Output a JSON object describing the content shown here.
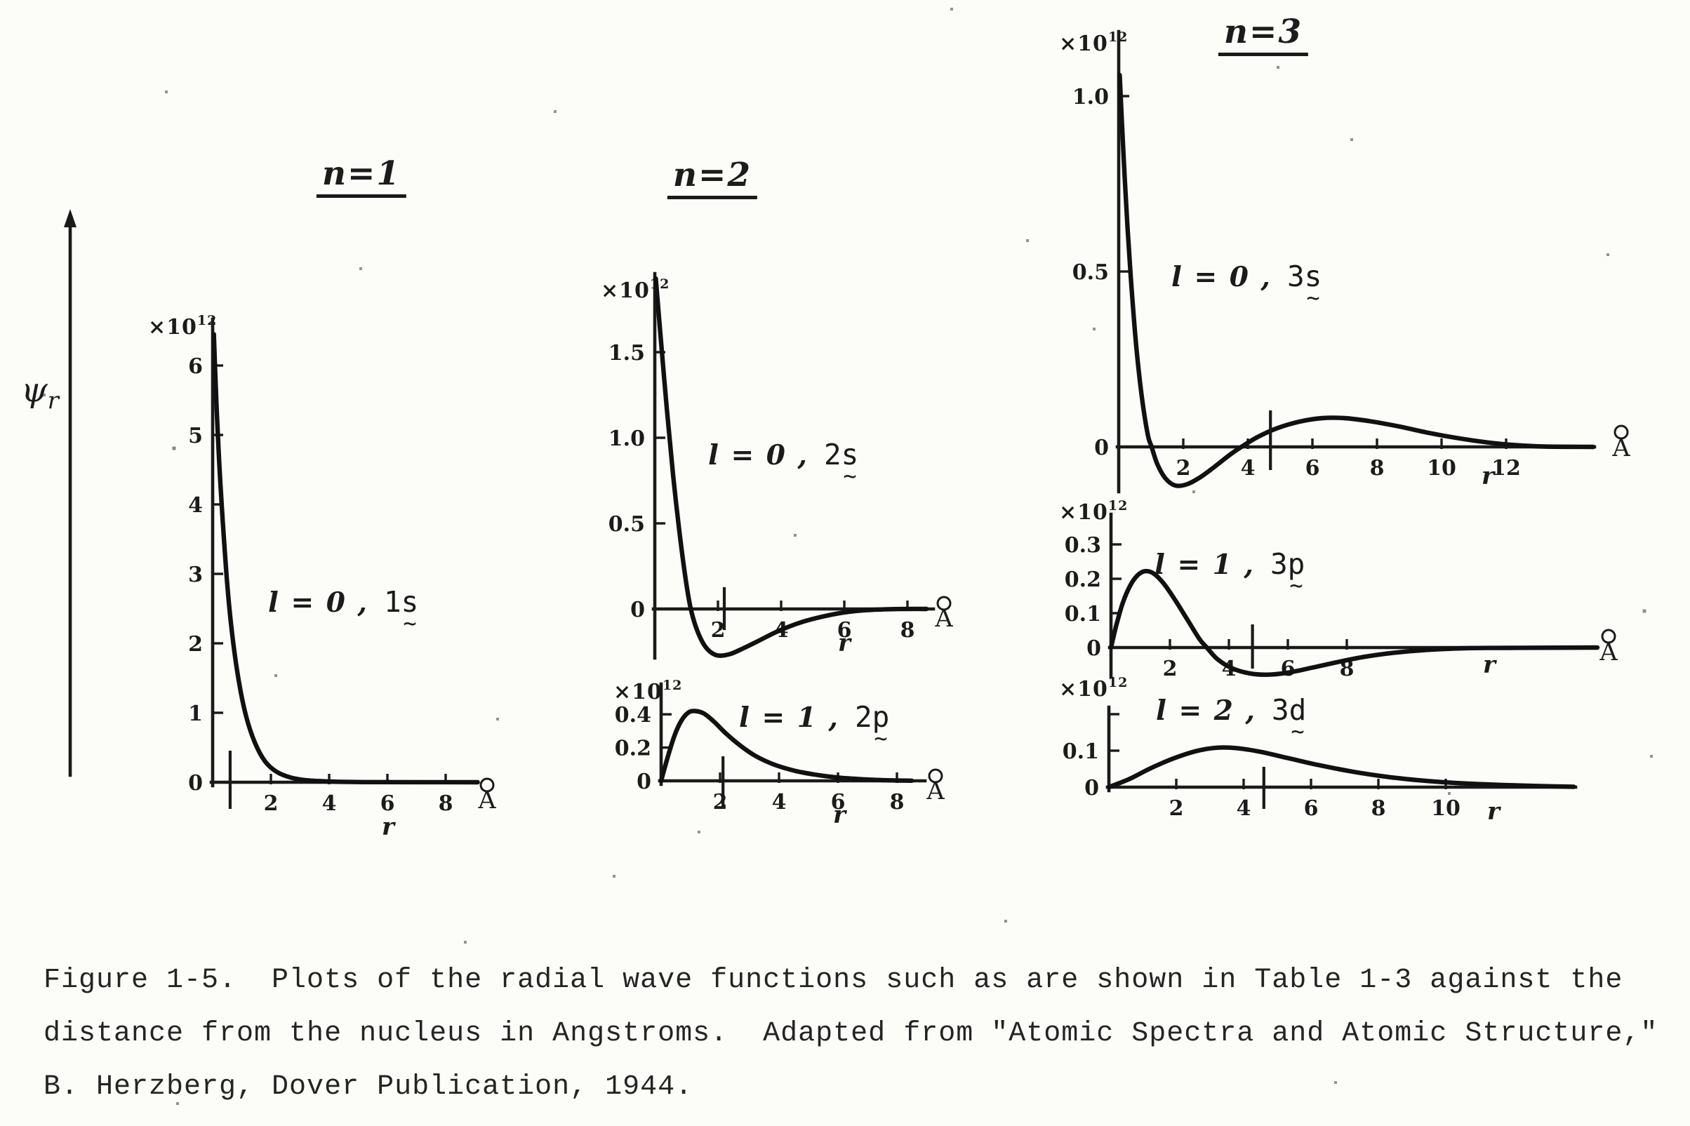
{
  "page": {
    "background": "#fcfcf8",
    "ink": "#1a1a1a"
  },
  "columns": [
    {
      "title": "n=1"
    },
    {
      "title": "n=2"
    },
    {
      "title": "n=3"
    }
  ],
  "y_axis_label": {
    "psi": "ψ",
    "sub": "r"
  },
  "caption": {
    "lines": [
      "Figure 1-5.  Plots of the radial wave functions such as are shown in Table 1-3 against the",
      "distance from the nucleus in Angstroms.  Adapted from \"Atomic Spectra and Atomic Structure,\"",
      "B. Herzberg, Dover Publication, 1944."
    ]
  },
  "chart_data": [
    {
      "id": "1s",
      "type": "line",
      "group": "n=1",
      "quantum": {
        "n": 1,
        "l": 0
      },
      "label": {
        "prefix": "l = 0 ,",
        "orbital": "1s",
        "tilde": "~"
      },
      "scale": {
        "base": "×10",
        "exp": "12"
      },
      "xlabel": "r",
      "x_unit": {
        "symbol": "Å",
        "letter": "A"
      },
      "yticks": [
        {
          "t": "6",
          "v": 6
        },
        {
          "t": "5",
          "v": 5
        },
        {
          "t": "4",
          "v": 4
        },
        {
          "t": "3",
          "v": 3
        },
        {
          "t": "2",
          "v": 2
        },
        {
          "t": "1",
          "v": 1
        },
        {
          "t": "0",
          "v": 0
        }
      ],
      "xticks": [
        {
          "t": "2",
          "v": 2
        },
        {
          "t": "4",
          "v": 4
        },
        {
          "t": "6",
          "v": 6
        },
        {
          "t": "8",
          "v": 8
        }
      ],
      "xlim": [
        0,
        9.1
      ],
      "ylim": [
        0,
        6.7
      ],
      "marker_r": 0.6,
      "points": [
        [
          0.04,
          6.45
        ],
        [
          0.12,
          5.55
        ],
        [
          0.22,
          4.65
        ],
        [
          0.34,
          3.8
        ],
        [
          0.5,
          2.85
        ],
        [
          0.68,
          2.1
        ],
        [
          0.9,
          1.45
        ],
        [
          1.15,
          0.95
        ],
        [
          1.45,
          0.57
        ],
        [
          1.8,
          0.3
        ],
        [
          2.2,
          0.15
        ],
        [
          2.7,
          0.065
        ],
        [
          3.3,
          0.025
        ],
        [
          4.2,
          0.008
        ],
        [
          5.5,
          0.002
        ],
        [
          7.2,
          0.001
        ],
        [
          9.1,
          0.0
        ]
      ]
    },
    {
      "id": "2s",
      "type": "line",
      "group": "n=2",
      "quantum": {
        "n": 2,
        "l": 0
      },
      "label": {
        "prefix": "l = 0 ,",
        "orbital": "2s",
        "tilde": "~"
      },
      "scale": {
        "base": "×10",
        "exp": "12"
      },
      "xlabel": "r",
      "x_unit": {
        "symbol": "Å",
        "letter": "A"
      },
      "yticks": [
        {
          "t": "1.5",
          "v": 1.5
        },
        {
          "t": "1.0",
          "v": 1.0
        },
        {
          "t": "0.5",
          "v": 0.5
        },
        {
          "t": "0",
          "v": 0
        }
      ],
      "xticks": [
        {
          "t": "2",
          "v": 2
        },
        {
          "t": "4",
          "v": 4
        },
        {
          "t": "6",
          "v": 6
        },
        {
          "t": "8",
          "v": 8
        }
      ],
      "xlim": [
        0,
        8.8
      ],
      "ylim": [
        -0.3,
        1.95
      ],
      "marker_r": 2.2,
      "points": [
        [
          0.03,
          1.93
        ],
        [
          0.18,
          1.6
        ],
        [
          0.38,
          1.17
        ],
        [
          0.58,
          0.78
        ],
        [
          0.78,
          0.45
        ],
        [
          0.98,
          0.17
        ],
        [
          1.14,
          0.0
        ],
        [
          1.35,
          -0.13
        ],
        [
          1.62,
          -0.225
        ],
        [
          1.95,
          -0.27
        ],
        [
          2.35,
          -0.265
        ],
        [
          2.8,
          -0.23
        ],
        [
          3.3,
          -0.185
        ],
        [
          3.9,
          -0.13
        ],
        [
          4.6,
          -0.08
        ],
        [
          5.3,
          -0.045
        ],
        [
          6.0,
          -0.02
        ],
        [
          6.7,
          -0.007
        ],
        [
          7.6,
          -0.001
        ],
        [
          8.6,
          0.0
        ]
      ]
    },
    {
      "id": "2p",
      "type": "line",
      "group": "n=2",
      "quantum": {
        "n": 2,
        "l": 1
      },
      "label": {
        "prefix": "l = 1 ,",
        "orbital": "2p",
        "tilde": "~"
      },
      "scale": {
        "base": "×10",
        "exp": "12"
      },
      "xlabel": "r",
      "x_unit": {
        "symbol": "Å",
        "letter": "A"
      },
      "yticks": [
        {
          "t": "0.4",
          "v": 0.4
        },
        {
          "t": "0.2",
          "v": 0.2
        },
        {
          "t": "0",
          "v": 0
        }
      ],
      "xticks": [
        {
          "t": "2",
          "v": 2
        },
        {
          "t": "4",
          "v": 4
        },
        {
          "t": "6",
          "v": 6
        },
        {
          "t": "8",
          "v": 8
        }
      ],
      "xlim": [
        0,
        8.5
      ],
      "ylim": [
        0,
        0.45
      ],
      "marker_r": 2.1,
      "points": [
        [
          0.0,
          0.0
        ],
        [
          0.22,
          0.14
        ],
        [
          0.45,
          0.27
        ],
        [
          0.68,
          0.36
        ],
        [
          0.92,
          0.41
        ],
        [
          1.15,
          0.42
        ],
        [
          1.45,
          0.405
        ],
        [
          1.8,
          0.355
        ],
        [
          2.2,
          0.285
        ],
        [
          2.7,
          0.21
        ],
        [
          3.2,
          0.15
        ],
        [
          3.8,
          0.1
        ],
        [
          4.5,
          0.062
        ],
        [
          5.2,
          0.038
        ],
        [
          6.0,
          0.02
        ],
        [
          6.9,
          0.009
        ],
        [
          7.8,
          0.003
        ],
        [
          8.5,
          0.001
        ]
      ]
    },
    {
      "id": "3s",
      "type": "line",
      "group": "n=3",
      "quantum": {
        "n": 3,
        "l": 0
      },
      "label": {
        "prefix": "l = 0 ,",
        "orbital": "3s",
        "tilde": "~"
      },
      "scale": {
        "base": "×10",
        "exp": "12"
      },
      "xlabel": "r",
      "x_unit": {
        "symbol": "Å",
        "letter": "A"
      },
      "yticks": [
        {
          "t": "1.0",
          "v": 1.0
        },
        {
          "t": "0.5",
          "v": 0.5
        },
        {
          "t": "0",
          "v": 0
        }
      ],
      "xticks": [
        {
          "t": "2",
          "v": 2
        },
        {
          "t": "4",
          "v": 4
        },
        {
          "t": "6",
          "v": 6
        },
        {
          "t": "8",
          "v": 8
        },
        {
          "t": "10",
          "v": 10
        },
        {
          "t": "12",
          "v": 12
        }
      ],
      "xlim": [
        0,
        14.7
      ],
      "ylim": [
        -0.12,
        1.06
      ],
      "marker_r": 4.7,
      "points": [
        [
          0.03,
          1.06
        ],
        [
          0.14,
          0.85
        ],
        [
          0.27,
          0.63
        ],
        [
          0.4,
          0.45
        ],
        [
          0.55,
          0.28
        ],
        [
          0.72,
          0.14
        ],
        [
          0.9,
          0.035
        ],
        [
          1.02,
          0.0
        ],
        [
          1.2,
          -0.05
        ],
        [
          1.45,
          -0.09
        ],
        [
          1.75,
          -0.11
        ],
        [
          2.1,
          -0.107
        ],
        [
          2.5,
          -0.088
        ],
        [
          2.95,
          -0.058
        ],
        [
          3.45,
          -0.022
        ],
        [
          3.8,
          0.0
        ],
        [
          4.3,
          0.028
        ],
        [
          4.9,
          0.053
        ],
        [
          5.6,
          0.072
        ],
        [
          6.3,
          0.082
        ],
        [
          7.0,
          0.082
        ],
        [
          7.8,
          0.073
        ],
        [
          8.7,
          0.058
        ],
        [
          9.6,
          0.04
        ],
        [
          10.5,
          0.025
        ],
        [
          11.4,
          0.013
        ],
        [
          12.3,
          0.005
        ],
        [
          13.2,
          0.001
        ],
        [
          14.7,
          0.0
        ]
      ]
    },
    {
      "id": "3p",
      "type": "line",
      "group": "n=3",
      "quantum": {
        "n": 3,
        "l": 1
      },
      "label": {
        "prefix": "l = 1 ,",
        "orbital": "3p",
        "tilde": "~"
      },
      "scale": {
        "base": "×10",
        "exp": "12"
      },
      "xlabel": "r",
      "x_unit": {
        "symbol": "Å",
        "letter": "A"
      },
      "yticks": [
        {
          "t": "0.3",
          "v": 0.3
        },
        {
          "t": "0.2",
          "v": 0.2
        },
        {
          "t": "0.1",
          "v": 0.1
        },
        {
          "t": "0",
          "v": 0
        }
      ],
      "xticks": [
        {
          "t": "2",
          "v": 2
        },
        {
          "t": "4",
          "v": 4
        },
        {
          "t": "6",
          "v": 6
        },
        {
          "t": "8",
          "v": 8
        }
      ],
      "xlim": [
        0,
        16.5
      ],
      "ylim": [
        -0.08,
        0.32
      ],
      "marker_r": 4.8,
      "points": [
        [
          0.0,
          0.0
        ],
        [
          0.18,
          0.065
        ],
        [
          0.4,
          0.13
        ],
        [
          0.65,
          0.18
        ],
        [
          0.9,
          0.21
        ],
        [
          1.15,
          0.222
        ],
        [
          1.45,
          0.215
        ],
        [
          1.8,
          0.185
        ],
        [
          2.2,
          0.135
        ],
        [
          2.6,
          0.08
        ],
        [
          3.0,
          0.025
        ],
        [
          3.25,
          0.0
        ],
        [
          3.6,
          -0.033
        ],
        [
          4.1,
          -0.06
        ],
        [
          4.7,
          -0.075
        ],
        [
          5.3,
          -0.079
        ],
        [
          6.0,
          -0.073
        ],
        [
          6.8,
          -0.059
        ],
        [
          7.7,
          -0.042
        ],
        [
          8.6,
          -0.027
        ],
        [
          9.6,
          -0.015
        ],
        [
          10.7,
          -0.007
        ],
        [
          12.0,
          -0.002
        ],
        [
          13.5,
          -0.001
        ],
        [
          16.5,
          0.0
        ]
      ]
    },
    {
      "id": "3d",
      "type": "line",
      "group": "n=3",
      "quantum": {
        "n": 3,
        "l": 2
      },
      "label": {
        "prefix": "l = 2 ,",
        "orbital": "3d",
        "tilde": "~"
      },
      "scale": {
        "base": "×10",
        "exp": "12"
      },
      "xlabel": "r",
      "x_unit": null,
      "yticks": [
        {
          "t": "",
          "v": 0.2
        },
        {
          "t": "0.1",
          "v": 0.1
        },
        {
          "t": "0",
          "v": 0
        }
      ],
      "xticks": [
        {
          "t": "2",
          "v": 2
        },
        {
          "t": "4",
          "v": 4
        },
        {
          "t": "6",
          "v": 6
        },
        {
          "t": "8",
          "v": 8
        },
        {
          "t": "10",
          "v": 10
        }
      ],
      "xlim": [
        0,
        13.8
      ],
      "ylim": [
        0,
        0.12
      ],
      "marker_r": 4.6,
      "points": [
        [
          0.0,
          0.0
        ],
        [
          0.6,
          0.022
        ],
        [
          1.2,
          0.05
        ],
        [
          1.9,
          0.078
        ],
        [
          2.6,
          0.099
        ],
        [
          3.2,
          0.108
        ],
        [
          3.8,
          0.107
        ],
        [
          4.5,
          0.097
        ],
        [
          5.3,
          0.08
        ],
        [
          6.2,
          0.061
        ],
        [
          7.2,
          0.043
        ],
        [
          8.2,
          0.029
        ],
        [
          9.3,
          0.018
        ],
        [
          10.4,
          0.011
        ],
        [
          11.7,
          0.006
        ],
        [
          12.8,
          0.003
        ],
        [
          13.8,
          0.001
        ]
      ]
    }
  ]
}
